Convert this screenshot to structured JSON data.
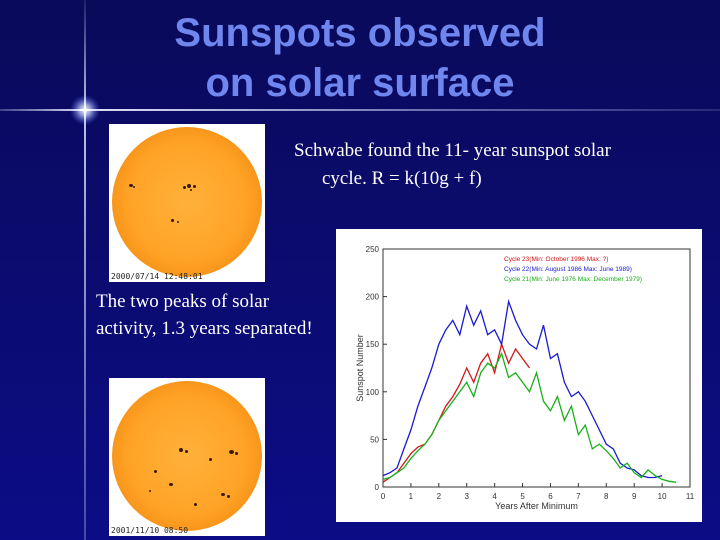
{
  "slide": {
    "title_line1": "Sunspots observed",
    "title_line2": "on solar surface",
    "text_top_line1": "Schwabe found the 11- year sunspot solar",
    "text_top_line2": "cycle.  R = k(10g + f)",
    "text_left": "The two peaks of solar activity, 1.3 years separated!",
    "accent_color": "#6f86ee",
    "background_color": "#0b0b6e"
  },
  "images": {
    "sun_top_timestamp": "2000/07/14 12:48:01",
    "sun_bottom_timestamp": "2001/11/10 08:50"
  },
  "chart_data": {
    "type": "line",
    "xlabel": "Years After Minimum",
    "ylabel": "Sunspot Number",
    "xlim": [
      0,
      11
    ],
    "ylim": [
      0,
      250
    ],
    "x_ticks": [
      "0",
      "1",
      "2",
      "3",
      "4",
      "5",
      "6",
      "7",
      "8",
      "9",
      "10",
      "11"
    ],
    "y_ticks": [
      "0",
      "50",
      "100",
      "150",
      "200",
      "250"
    ],
    "legend_position": "top-right",
    "series": [
      {
        "name": "Cycle 23(Min: October 1996 Max: ?)",
        "color": "#d01818",
        "x": [
          0,
          0.25,
          0.5,
          0.75,
          1,
          1.25,
          1.5,
          1.75,
          2,
          2.25,
          2.5,
          2.75,
          3,
          3.25,
          3.5,
          3.75,
          4,
          4.25,
          4.5,
          4.75,
          5,
          5.25
        ],
        "values": [
          5,
          10,
          15,
          25,
          35,
          42,
          45,
          55,
          70,
          85,
          95,
          108,
          125,
          110,
          130,
          140,
          120,
          150,
          130,
          145,
          135,
          125
        ]
      },
      {
        "name": "Cycle 22(Min: August 1986 Max: June 1989)",
        "color": "#1a1ad0",
        "x": [
          0,
          0.25,
          0.5,
          0.75,
          1,
          1.25,
          1.5,
          1.75,
          2,
          2.25,
          2.5,
          2.75,
          3,
          3.25,
          3.5,
          3.75,
          4,
          4.25,
          4.5,
          4.75,
          5,
          5.25,
          5.5,
          5.75,
          6,
          6.25,
          6.5,
          6.75,
          7,
          7.25,
          7.5,
          7.75,
          8,
          8.25,
          8.5,
          8.75,
          9,
          9.25,
          9.5,
          9.75,
          10
        ],
        "values": [
          12,
          15,
          20,
          40,
          60,
          85,
          105,
          125,
          150,
          165,
          175,
          160,
          190,
          170,
          185,
          160,
          165,
          150,
          195,
          175,
          160,
          150,
          145,
          170,
          135,
          140,
          110,
          95,
          100,
          90,
          75,
          60,
          45,
          40,
          25,
          20,
          18,
          12,
          10,
          10,
          12
        ]
      },
      {
        "name": "Cycle 21(Min: June 1976 Max: December 1979)",
        "color": "#18b018",
        "x": [
          0,
          0.25,
          0.5,
          0.75,
          1,
          1.25,
          1.5,
          1.75,
          2,
          2.25,
          2.5,
          2.75,
          3,
          3.25,
          3.5,
          3.75,
          4,
          4.25,
          4.5,
          4.75,
          5,
          5.25,
          5.5,
          5.75,
          6,
          6.25,
          6.5,
          6.75,
          7,
          7.25,
          7.5,
          7.75,
          8,
          8.25,
          8.5,
          8.75,
          9,
          9.25,
          9.5,
          9.75,
          10,
          10.25,
          10.5
        ],
        "values": [
          8,
          10,
          15,
          20,
          30,
          38,
          45,
          55,
          70,
          80,
          90,
          100,
          110,
          95,
          120,
          130,
          125,
          140,
          115,
          120,
          110,
          100,
          120,
          90,
          80,
          95,
          70,
          85,
          55,
          65,
          40,
          45,
          38,
          30,
          20,
          25,
          15,
          10,
          18,
          12,
          8,
          6,
          5
        ]
      }
    ]
  }
}
